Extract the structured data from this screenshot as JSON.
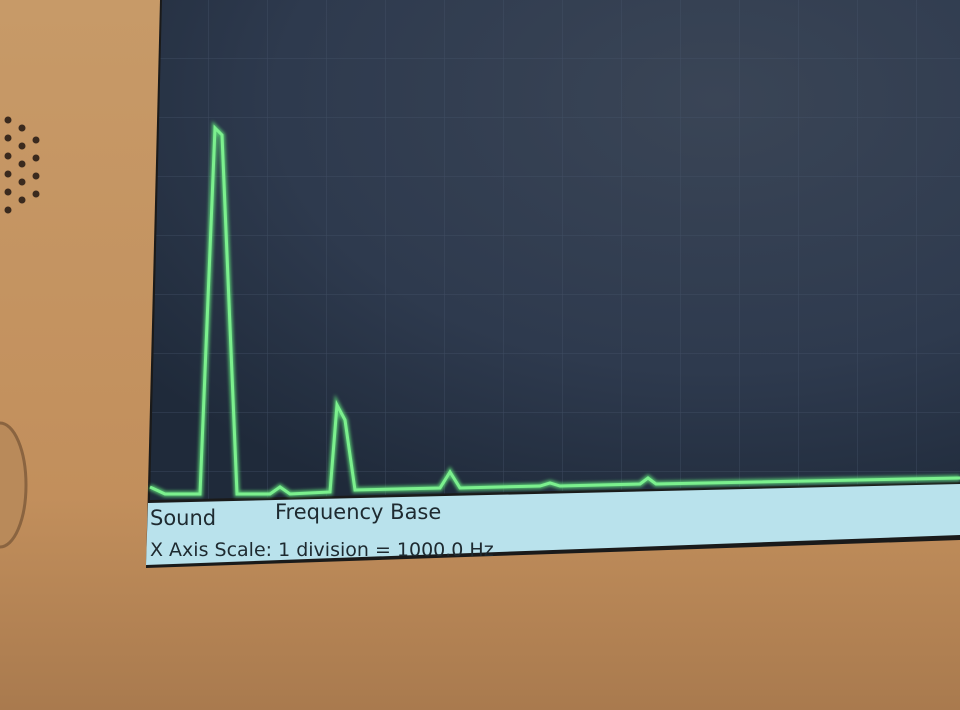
{
  "status": {
    "mode": "Sound",
    "view": "Frequency Base",
    "scale": "X Axis Scale: 1 division = 1000.0 Hz"
  }
}
